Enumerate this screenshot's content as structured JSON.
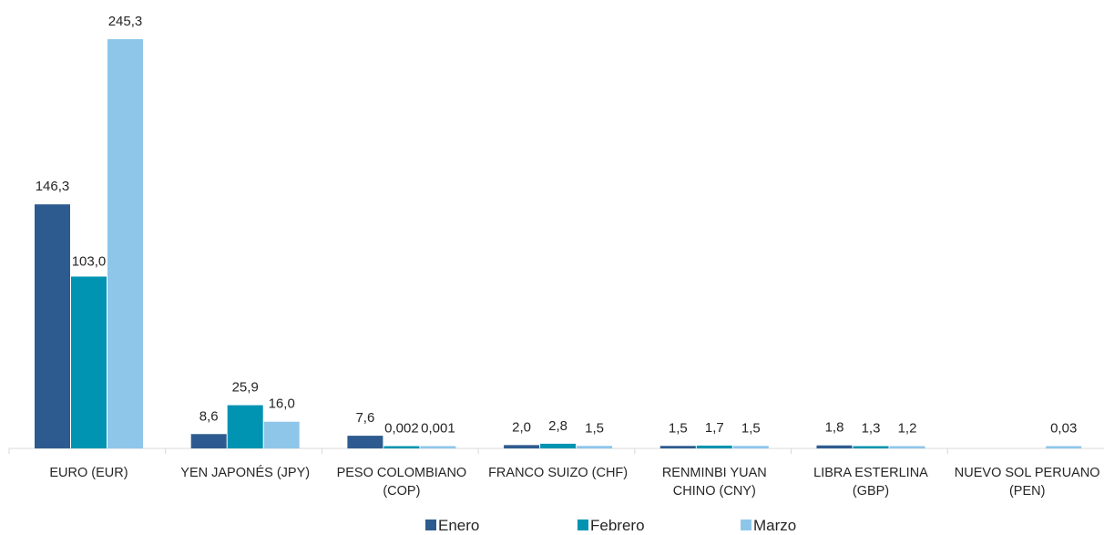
{
  "chart_data": {
    "type": "bar",
    "categories": [
      [
        "EURO (EUR)"
      ],
      [
        "YEN JAPONÉS (JPY)"
      ],
      [
        "PESO COLOMBIANO",
        "(COP)"
      ],
      [
        "FRANCO SUIZO (CHF)"
      ],
      [
        "RENMINBI YUAN",
        "CHINO (CNY)"
      ],
      [
        "LIBRA ESTERLINA",
        "(GBP)"
      ],
      [
        "NUEVO SOL PERUANO",
        "(PEN)"
      ]
    ],
    "series": [
      {
        "name": "Enero",
        "color": "#2e5b8f",
        "values": [
          146.3,
          8.6,
          7.6,
          2.0,
          1.5,
          1.8,
          null
        ],
        "labels": [
          "146,3",
          "8,6",
          "7,6",
          "2,0",
          "1,5",
          "1,8",
          ""
        ]
      },
      {
        "name": "Febrero",
        "color": "#0093b2",
        "values": [
          103.0,
          25.9,
          0.002,
          2.8,
          1.7,
          1.3,
          null
        ],
        "labels": [
          "103,0",
          "25,9",
          "0,002",
          "2,8",
          "1,7",
          "1,3",
          ""
        ]
      },
      {
        "name": "Marzo",
        "color": "#8ec6ea",
        "values": [
          245.3,
          16.0,
          0.001,
          1.5,
          1.5,
          1.2,
          0.03
        ],
        "labels": [
          "245,3",
          "16,0",
          "0,001",
          "1,5",
          "1,5",
          "1,2",
          "0,03"
        ]
      }
    ],
    "ylim": [
      0,
      245.3
    ],
    "grid": false,
    "legend_position": "bottom"
  }
}
